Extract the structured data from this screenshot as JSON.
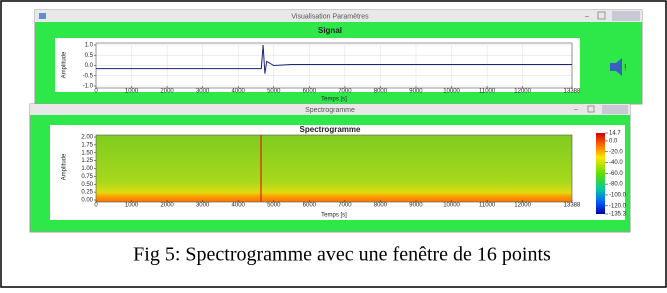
{
  "window_1": {
    "title": "Visualisation Paramètres",
    "chart": {
      "type": "line",
      "title": "Signal",
      "x_label": "Temps [s]",
      "y_label": "Amplitude",
      "x": [
        0,
        500,
        1000,
        1500,
        2000,
        2500,
        3000,
        3500,
        4000,
        4500,
        4650,
        4700,
        4750,
        4800,
        5000,
        5500,
        6000,
        7000,
        8000,
        9000,
        10000,
        11000,
        12000,
        13000,
        13388
      ],
      "values": [
        -0.15,
        -0.15,
        -0.15,
        -0.15,
        -0.15,
        -0.15,
        -0.15,
        -0.15,
        -0.15,
        -0.15,
        -0.15,
        1.0,
        -0.4,
        0.2,
        0.0,
        0.05,
        0.05,
        0.05,
        0.05,
        0.05,
        0.05,
        0.05,
        0.05,
        0.05,
        0.05
      ],
      "color": "#1a237e",
      "xlim": [
        0,
        13388
      ],
      "ylim": [
        -1,
        1
      ],
      "xticks": [
        0,
        1000,
        2000,
        3000,
        4000,
        5000,
        6000,
        7000,
        8000,
        9000,
        10000,
        11000,
        12000,
        13388
      ],
      "yticks": [
        {
          "value": 1,
          "label": "1.0"
        },
        {
          "value": 0.5,
          "label": "0.5"
        },
        {
          "value": 0,
          "label": "0.0"
        },
        {
          "value": -0.5,
          "label": "-0.5"
        },
        {
          "value": -1,
          "label": "-1.0"
        }
      ]
    }
  },
  "window_2": {
    "title": "Spectrogramme",
    "chart": {
      "type": "heatmap",
      "title": "Spectrogramme",
      "x_label": "Temps [s]",
      "y_label": "Amplitude",
      "xlim": [
        0,
        13388
      ],
      "ylim": [
        0,
        2
      ],
      "xticks": [
        0,
        1000,
        2000,
        3000,
        4000,
        5000,
        6000,
        7000,
        8000,
        9000,
        10000,
        11000,
        12000,
        13388
      ],
      "yticks": [
        {
          "value": 2,
          "label": "2.00"
        },
        {
          "value": 1.75,
          "label": "1.75"
        },
        {
          "value": 1.5,
          "label": "1.50"
        },
        {
          "value": 1.25,
          "label": "1.25"
        },
        {
          "value": 1,
          "label": "1.00"
        },
        {
          "value": 0.75,
          "label": "0.75"
        },
        {
          "value": 0.5,
          "label": "0.50"
        },
        {
          "value": 0.25,
          "label": "0.25"
        },
        {
          "value": 0,
          "label": "0.00"
        }
      ],
      "colorbar": {
        "lim": [
          -135.3,
          14.7
        ],
        "ticks": [
          14.7,
          {
            "value": 0,
            "label": "0.0"
          },
          {
            "value": -20,
            "label": "-20.0"
          },
          {
            "value": -40,
            "label": "-40.0"
          },
          {
            "value": -60,
            "label": "-60.0"
          },
          {
            "value": -80,
            "label": "-80.0"
          },
          {
            "value": -100,
            "label": "-100.0"
          },
          {
            "value": -120,
            "label": "-120.0"
          },
          -135.3
        ]
      }
    }
  },
  "caption": "Fig 5: Spectrogramme avec une fenêtre de 16 points"
}
